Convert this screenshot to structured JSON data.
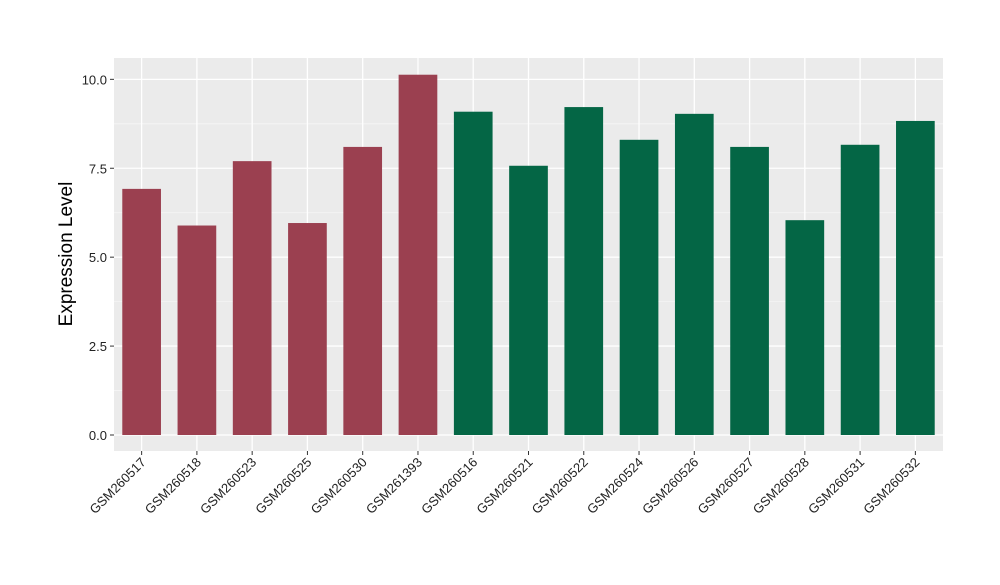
{
  "chart_data": {
    "type": "bar",
    "title": "",
    "xlabel": "",
    "ylabel": "Expression Level",
    "ylim": [
      -0.45,
      10.6
    ],
    "yticks": [
      0.0,
      2.5,
      5.0,
      7.5,
      10.0
    ],
    "ytick_labels": [
      "0.0",
      "2.5",
      "5.0",
      "7.5",
      "10.0"
    ],
    "grid": true,
    "background": "#ebebeb",
    "categories": [
      "GSM260517",
      "GSM260518",
      "GSM260523",
      "GSM260525",
      "GSM260530",
      "GSM261393",
      "GSM260516",
      "GSM260521",
      "GSM260522",
      "GSM260524",
      "GSM260526",
      "GSM260527",
      "GSM260528",
      "GSM260531",
      "GSM260532"
    ],
    "values": [
      6.92,
      5.89,
      7.7,
      5.96,
      8.1,
      10.13,
      9.09,
      7.57,
      9.22,
      8.3,
      9.03,
      8.1,
      6.04,
      8.16,
      8.83
    ],
    "group_colors": [
      "#9b4050",
      "#9b4050",
      "#9b4050",
      "#9b4050",
      "#9b4050",
      "#9b4050",
      "#046645",
      "#046645",
      "#046645",
      "#046645",
      "#046645",
      "#046645",
      "#046645",
      "#046645",
      "#046645"
    ]
  }
}
